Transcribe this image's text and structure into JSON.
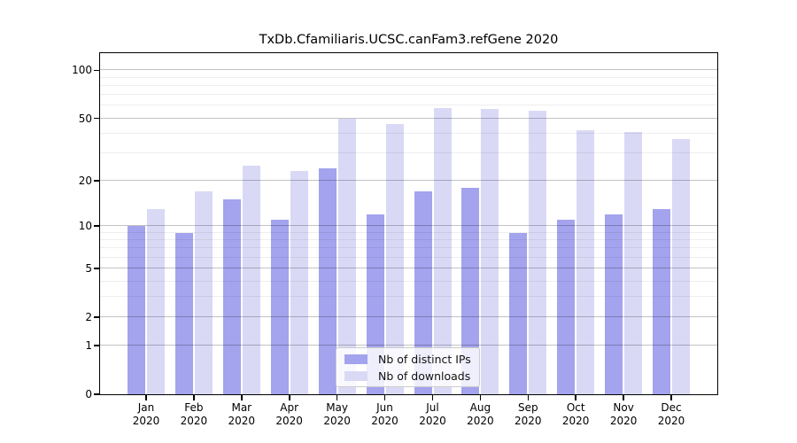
{
  "chart_data": {
    "type": "bar",
    "title": "TxDb.Cfamiliaris.UCSC.canFam3.refGene 2020",
    "categories": [
      "Jan",
      "Feb",
      "Mar",
      "Apr",
      "May",
      "Jun",
      "Jul",
      "Aug",
      "Sep",
      "Oct",
      "Nov",
      "Dec"
    ],
    "year": "2020",
    "series": [
      {
        "name": "Nb of distinct IPs",
        "color": "#a3a3ee",
        "values": [
          10,
          9,
          15,
          11,
          24,
          12,
          17,
          18,
          9,
          11,
          12,
          13
        ]
      },
      {
        "name": "Nb of downloads",
        "color": "#d9d9f6",
        "values": [
          13,
          17,
          25,
          23,
          50,
          46,
          58,
          57,
          56,
          42,
          41,
          37
        ]
      }
    ],
    "xlabel": "",
    "ylabel": "",
    "yscale": "log1p",
    "ylim": [
      0,
      128
    ],
    "yticks": [
      0,
      1,
      2,
      5,
      10,
      20,
      50,
      100
    ],
    "ytick_labels": [
      "0",
      "1",
      "2",
      "5",
      "10",
      "20",
      "50",
      "100"
    ],
    "minor_yticks": [
      3,
      4,
      6,
      7,
      8,
      9,
      30,
      40,
      60,
      70,
      80,
      90
    ],
    "grid": true,
    "legend_position": "lower-center-inside"
  }
}
